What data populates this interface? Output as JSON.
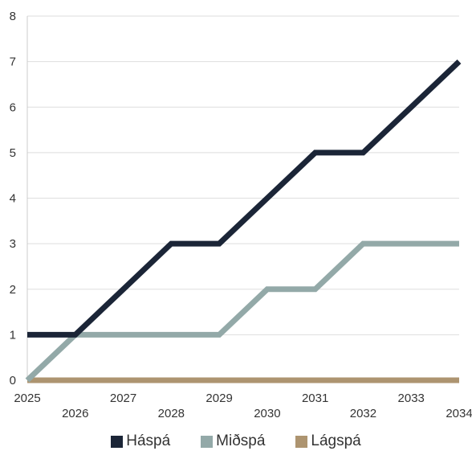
{
  "chart_data": {
    "type": "line",
    "x": [
      "2025",
      "2026",
      "2027",
      "2028",
      "2029",
      "2030",
      "2031",
      "2032",
      "2033",
      "2034"
    ],
    "series": [
      {
        "name": "Háspá",
        "color": "#1b2537",
        "values": [
          1,
          1,
          2,
          3,
          3,
          4,
          5,
          5,
          6,
          7
        ]
      },
      {
        "name": "Miðspá",
        "color": "#93a9a8",
        "values": [
          0,
          1,
          1,
          1,
          1,
          2,
          2,
          3,
          3,
          3
        ]
      },
      {
        "name": "Lágspá",
        "color": "#ad9470",
        "values": [
          0,
          0,
          0,
          0,
          0,
          0,
          0,
          0,
          0,
          0
        ]
      }
    ],
    "ylim": [
      0,
      8
    ],
    "yticks": [
      0,
      1,
      2,
      3,
      4,
      5,
      6,
      7,
      8
    ],
    "title": "",
    "xlabel": "",
    "ylabel": "",
    "grid": true,
    "legend_position": "bottom"
  }
}
